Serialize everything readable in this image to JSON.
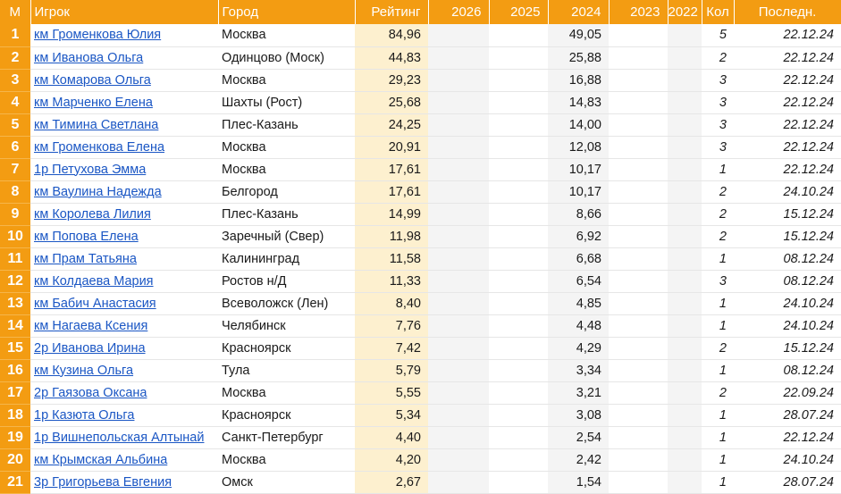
{
  "columns": {
    "m": "М",
    "player": "Игрок",
    "city": "Город",
    "rating": "Рейтинг",
    "y2026": "2026",
    "y2025": "2025",
    "y2024": "2024",
    "y2023": "2023",
    "y2022": "2022",
    "count": "Кол",
    "last": "Последн."
  },
  "rows": [
    {
      "pos": "1",
      "player": "км Громенкова Юлия",
      "city": "Москва",
      "rating": "84,96",
      "y2026": "",
      "y2025": "",
      "y2024": "49,05",
      "y2023": "",
      "y2022": "",
      "count": "5",
      "last": "22.12.24"
    },
    {
      "pos": "2",
      "player": "км Иванова Ольга",
      "city": "Одинцово (Моск)",
      "rating": "44,83",
      "y2026": "",
      "y2025": "",
      "y2024": "25,88",
      "y2023": "",
      "y2022": "",
      "count": "2",
      "last": "22.12.24"
    },
    {
      "pos": "3",
      "player": "км Комарова Ольга",
      "city": "Москва",
      "rating": "29,23",
      "y2026": "",
      "y2025": "",
      "y2024": "16,88",
      "y2023": "",
      "y2022": "",
      "count": "3",
      "last": "22.12.24"
    },
    {
      "pos": "4",
      "player": "км Марченко Елена",
      "city": "Шахты (Рост)",
      "rating": "25,68",
      "y2026": "",
      "y2025": "",
      "y2024": "14,83",
      "y2023": "",
      "y2022": "",
      "count": "3",
      "last": "22.12.24"
    },
    {
      "pos": "5",
      "player": "км Тимина Светлана",
      "city": "Плес-Казань",
      "rating": "24,25",
      "y2026": "",
      "y2025": "",
      "y2024": "14,00",
      "y2023": "",
      "y2022": "",
      "count": "3",
      "last": "22.12.24"
    },
    {
      "pos": "6",
      "player": "км Громенкова Елена",
      "city": "Москва",
      "rating": "20,91",
      "y2026": "",
      "y2025": "",
      "y2024": "12,08",
      "y2023": "",
      "y2022": "",
      "count": "3",
      "last": "22.12.24"
    },
    {
      "pos": "7",
      "player": "1р Петухова Эмма",
      "city": "Москва",
      "rating": "17,61",
      "y2026": "",
      "y2025": "",
      "y2024": "10,17",
      "y2023": "",
      "y2022": "",
      "count": "1",
      "last": "22.12.24"
    },
    {
      "pos": "8",
      "player": "км Ваулина Надежда",
      "city": "Белгород",
      "rating": "17,61",
      "y2026": "",
      "y2025": "",
      "y2024": "10,17",
      "y2023": "",
      "y2022": "",
      "count": "2",
      "last": "24.10.24"
    },
    {
      "pos": "9",
      "player": "км Королева Лилия",
      "city": "Плес-Казань",
      "rating": "14,99",
      "y2026": "",
      "y2025": "",
      "y2024": "8,66",
      "y2023": "",
      "y2022": "",
      "count": "2",
      "last": "15.12.24"
    },
    {
      "pos": "10",
      "player": "км Попова Елена",
      "city": "Заречный (Свер)",
      "rating": "11,98",
      "y2026": "",
      "y2025": "",
      "y2024": "6,92",
      "y2023": "",
      "y2022": "",
      "count": "2",
      "last": "15.12.24"
    },
    {
      "pos": "11",
      "player": "км Прам Татьяна",
      "city": "Калининград",
      "rating": "11,58",
      "y2026": "",
      "y2025": "",
      "y2024": "6,68",
      "y2023": "",
      "y2022": "",
      "count": "1",
      "last": "08.12.24"
    },
    {
      "pos": "12",
      "player": "км Колдаева Мария",
      "city": "Ростов н/Д",
      "rating": "11,33",
      "y2026": "",
      "y2025": "",
      "y2024": "6,54",
      "y2023": "",
      "y2022": "",
      "count": "3",
      "last": "08.12.24"
    },
    {
      "pos": "13",
      "player": "км Бабич Анастасия",
      "city": "Всеволожск (Лен)",
      "rating": "8,40",
      "y2026": "",
      "y2025": "",
      "y2024": "4,85",
      "y2023": "",
      "y2022": "",
      "count": "1",
      "last": "24.10.24"
    },
    {
      "pos": "14",
      "player": "км Нагаева Ксения",
      "city": "Челябинск",
      "rating": "7,76",
      "y2026": "",
      "y2025": "",
      "y2024": "4,48",
      "y2023": "",
      "y2022": "",
      "count": "1",
      "last": "24.10.24"
    },
    {
      "pos": "15",
      "player": "2р Иванова Ирина",
      "city": "Красноярск",
      "rating": "7,42",
      "y2026": "",
      "y2025": "",
      "y2024": "4,29",
      "y2023": "",
      "y2022": "",
      "count": "2",
      "last": "15.12.24"
    },
    {
      "pos": "16",
      "player": "км Кузина Ольга",
      "city": "Тула",
      "rating": "5,79",
      "y2026": "",
      "y2025": "",
      "y2024": "3,34",
      "y2023": "",
      "y2022": "",
      "count": "1",
      "last": "08.12.24"
    },
    {
      "pos": "17",
      "player": "2р Гаязова Оксана",
      "city": "Москва",
      "rating": "5,55",
      "y2026": "",
      "y2025": "",
      "y2024": "3,21",
      "y2023": "",
      "y2022": "",
      "count": "2",
      "last": "22.09.24"
    },
    {
      "pos": "18",
      "player": "1р Казюта Ольга",
      "city": "Красноярск",
      "rating": "5,34",
      "y2026": "",
      "y2025": "",
      "y2024": "3,08",
      "y2023": "",
      "y2022": "",
      "count": "1",
      "last": "28.07.24"
    },
    {
      "pos": "19",
      "player": "1р Вишнепольская Алтынай",
      "city": "Санкт-Петербург",
      "rating": "4,40",
      "y2026": "",
      "y2025": "",
      "y2024": "2,54",
      "y2023": "",
      "y2022": "",
      "count": "1",
      "last": "22.12.24"
    },
    {
      "pos": "20",
      "player": "км Крымская Альбина",
      "city": "Москва",
      "rating": "4,20",
      "y2026": "",
      "y2025": "",
      "y2024": "2,42",
      "y2023": "",
      "y2022": "",
      "count": "1",
      "last": "24.10.24"
    },
    {
      "pos": "21",
      "player": "3р Григорьева Евгения",
      "city": "Омск",
      "rating": "2,67",
      "y2026": "",
      "y2025": "",
      "y2024": "1,54",
      "y2023": "",
      "y2022": "",
      "count": "1",
      "last": "28.07.24"
    }
  ],
  "colors": {
    "header_bg": "#f39c12",
    "rating_bg": "#fdf0cf",
    "gray_col_bg": "#f4f4f4",
    "link": "#1a56c4"
  }
}
